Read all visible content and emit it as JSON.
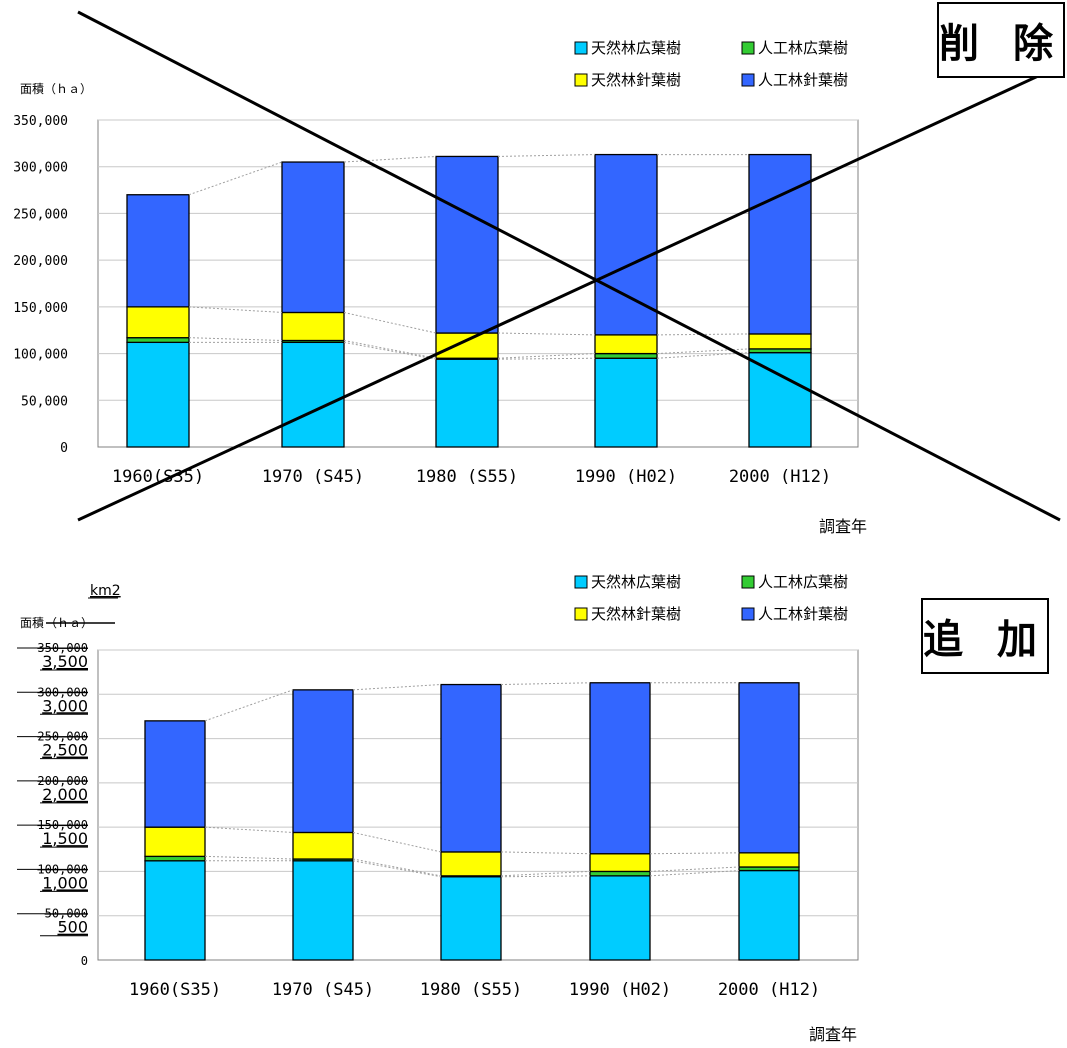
{
  "stamps": {
    "delete": "削 除",
    "add": "追 加"
  },
  "colors": {
    "natural_broadleaf": "#00ccff",
    "planted_broadleaf": "#33cc33",
    "natural_conifer": "#ffff00",
    "planted_conifer": "#3366ff",
    "connector": "#a0a0a0",
    "grid": "#c8c8c8"
  },
  "charts": [
    {
      "ylabel": "面積（ｈａ）",
      "yticks": [
        "350,000",
        "300,000",
        "250,000",
        "200,000",
        "150,000",
        "100,000",
        "50,000",
        "0"
      ],
      "xlabel": "調査年"
    },
    {
      "ylabel_unit": "km2",
      "ylabel_main": "面積",
      "ylabel_struck": "（ｈａ）",
      "yticks_struck": [
        "350,000",
        "300,000",
        "250,000",
        "200,000",
        "150,000",
        "100,000",
        "50,000"
      ],
      "yticks_new": [
        "3,500",
        "3,000",
        "2,500",
        "2,000",
        "1,500",
        "1,000",
        "500"
      ],
      "ytick_zero": "0",
      "xlabel": "調査年"
    }
  ],
  "chart_data": [
    {
      "type": "bar",
      "stacked": true,
      "categories": [
        "1960(S35)",
        "1970 (S45)",
        "1980 (S55)",
        "1990 (H02)",
        "2000 (H12)"
      ],
      "series": [
        {
          "name": "天然林広葉樹",
          "values": [
            112000,
            112000,
            94000,
            95000,
            101000
          ]
        },
        {
          "name": "人工林広葉樹",
          "values": [
            5000,
            2000,
            1000,
            5000,
            4000
          ]
        },
        {
          "name": "天然林針葉樹",
          "values": [
            33000,
            30000,
            27000,
            20000,
            16000
          ]
        },
        {
          "name": "人工林針葉樹",
          "values": [
            120000,
            161000,
            189000,
            193000,
            192000
          ]
        }
      ],
      "ylabel": "面積（ｈａ）",
      "xlabel": "調査年",
      "ylim": [
        0,
        350000
      ],
      "legend": "top-right",
      "grid": true
    },
    {
      "type": "bar",
      "stacked": true,
      "categories": [
        "1960(S35)",
        "1970 (S45)",
        "1980 (S55)",
        "1990 (H02)",
        "2000 (H12)"
      ],
      "series": [
        {
          "name": "天然林広葉樹",
          "values": [
            1120,
            1120,
            940,
            950,
            1010
          ]
        },
        {
          "name": "人工林広葉樹",
          "values": [
            50,
            20,
            10,
            50,
            40
          ]
        },
        {
          "name": "天然林針葉樹",
          "values": [
            330,
            300,
            270,
            200,
            160
          ]
        },
        {
          "name": "人工林針葉樹",
          "values": [
            1200,
            1610,
            1890,
            1930,
            1920
          ]
        }
      ],
      "ylabel": "面積 km2",
      "xlabel": "調査年",
      "ylim": [
        0,
        3500
      ],
      "legend": "top-right",
      "grid": true
    }
  ]
}
